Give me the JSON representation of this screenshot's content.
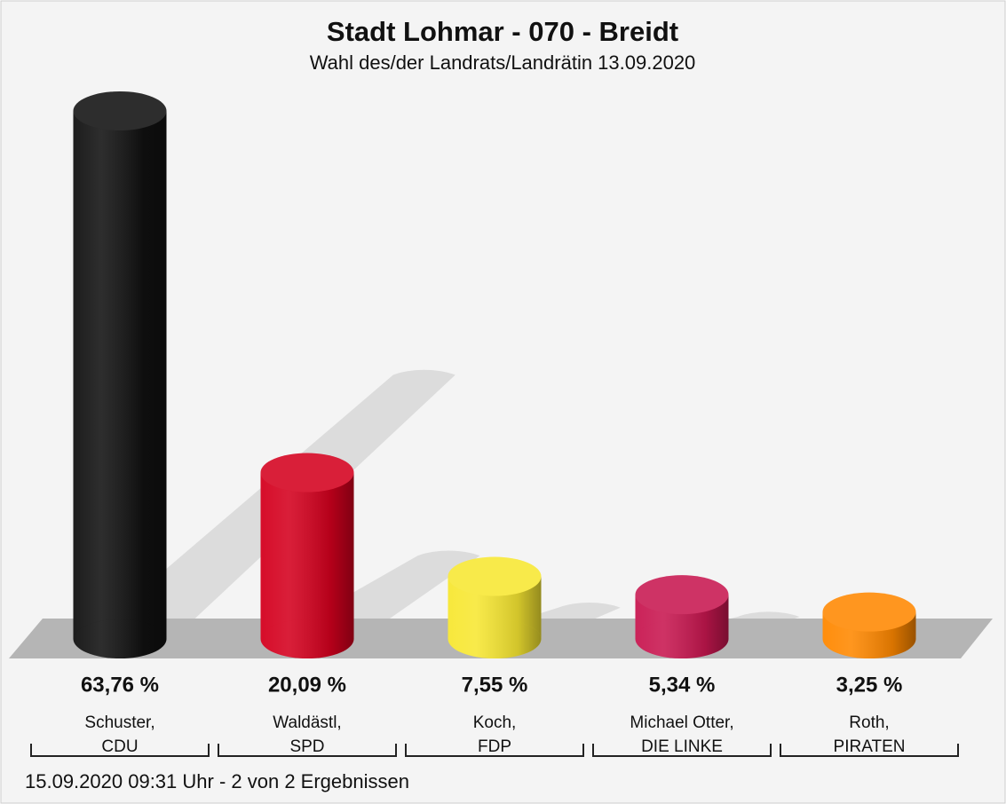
{
  "chart_data": {
    "type": "bar",
    "title": "Stadt Lohmar - 070 - Breidt",
    "subtitle": "Wahl des/der Landrats/Landrätin 13.09.2020",
    "categories": [
      "Schuster,\nCDU",
      "Waldästl,\nSPD",
      "Koch,\nFDP",
      "Michael Otter,\nDIE LINKE",
      "Roth,\nPIRATEN"
    ],
    "values": [
      63.76,
      20.09,
      7.55,
      5.34,
      3.25
    ],
    "value_labels": [
      "63,76 %",
      "20,09 %",
      "7,55 %",
      "5,34 %",
      "3,25 %"
    ],
    "colors": [
      "#111111",
      "#d4001e",
      "#f7e732",
      "#c81750",
      "#ff8800"
    ],
    "footer": "15.09.2020 09:31 Uhr - 2 von 2 Ergebnissen"
  }
}
